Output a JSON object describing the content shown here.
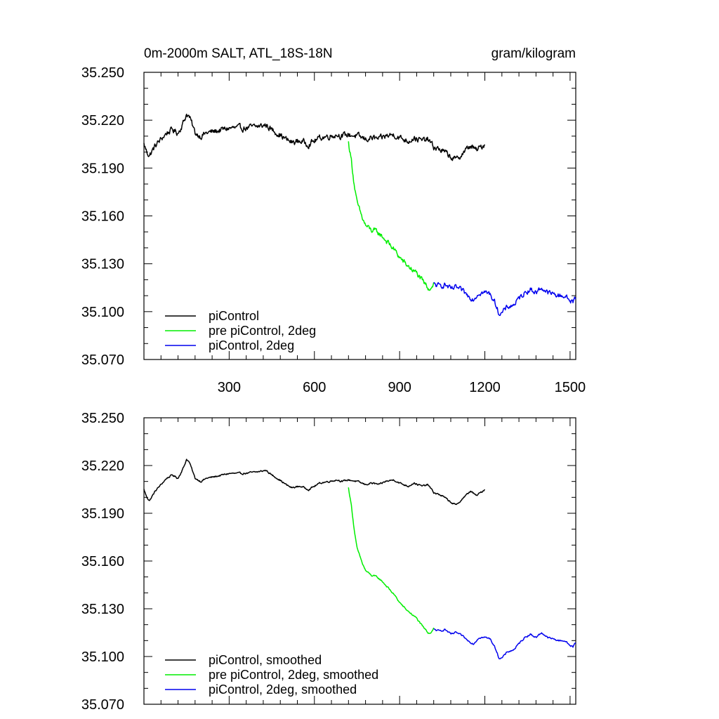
{
  "chart_data": [
    {
      "type": "line",
      "title_left": "0m-2000m SALT, ATL_18S-18N",
      "title_right": "gram/kilogram",
      "xlabel": "",
      "ylabel": "",
      "xlim": [
        0,
        1520
      ],
      "ylim": [
        35.07,
        35.25
      ],
      "xticks": [
        300,
        600,
        900,
        1200,
        1500
      ],
      "xtick_labels": [
        "300",
        "600",
        "900",
        "1200",
        "1500"
      ],
      "yticks": [
        35.07,
        35.1,
        35.13,
        35.16,
        35.19,
        35.22,
        35.25
      ],
      "ytick_labels": [
        "35.070",
        "35.100",
        "35.130",
        "35.160",
        "35.190",
        "35.220",
        "35.250"
      ],
      "legend_position": "bottom-left",
      "series": [
        {
          "name": "piControl",
          "color": "#000000",
          "noise": 0.0035,
          "x": [
            0,
            10,
            20,
            40,
            60,
            80,
            100,
            120,
            140,
            150,
            160,
            170,
            180,
            200,
            220,
            250,
            300,
            350,
            400,
            430,
            450,
            470,
            500,
            520,
            550,
            580,
            600,
            620,
            650,
            680,
            700,
            720,
            750,
            780,
            800,
            830,
            850,
            880,
            900,
            930,
            950,
            980,
            1000,
            1020,
            1050,
            1080,
            1100,
            1120,
            1150,
            1170,
            1200
          ],
          "y": [
            35.205,
            35.2,
            35.198,
            35.204,
            35.208,
            35.212,
            35.214,
            35.212,
            35.219,
            35.224,
            35.222,
            35.217,
            35.212,
            35.21,
            35.212,
            35.213,
            35.215,
            35.215,
            35.216,
            35.217,
            35.214,
            35.212,
            35.208,
            35.206,
            35.207,
            35.205,
            35.207,
            35.209,
            35.21,
            35.211,
            35.21,
            35.211,
            35.21,
            35.208,
            35.209,
            35.208,
            35.21,
            35.211,
            35.209,
            35.207,
            35.209,
            35.207,
            35.208,
            35.203,
            35.201,
            35.197,
            35.195,
            35.199,
            35.204,
            35.201,
            35.205
          ]
        },
        {
          "name": "pre piControl, 2deg",
          "color": "#00ee00",
          "noise": 0.0032,
          "x": [
            720,
            730,
            740,
            750,
            760,
            770,
            780,
            800,
            820,
            840,
            860,
            880,
            900,
            920,
            940,
            960,
            980,
            990,
            1000,
            1010,
            1020
          ],
          "y": [
            35.206,
            35.195,
            35.18,
            35.168,
            35.163,
            35.158,
            35.154,
            35.151,
            35.15,
            35.147,
            35.143,
            35.139,
            35.134,
            35.13,
            35.127,
            35.124,
            35.119,
            35.117,
            35.115,
            35.115,
            35.118
          ]
        },
        {
          "name": "piControl, 2deg",
          "color": "#0000ee",
          "noise": 0.003,
          "x": [
            1020,
            1040,
            1060,
            1080,
            1100,
            1120,
            1140,
            1160,
            1180,
            1200,
            1220,
            1240,
            1250,
            1260,
            1280,
            1300,
            1320,
            1340,
            1360,
            1380,
            1400,
            1420,
            1440,
            1460,
            1480,
            1500,
            1510,
            1520
          ],
          "y": [
            35.117,
            35.116,
            35.117,
            35.114,
            35.115,
            35.113,
            35.11,
            35.108,
            35.112,
            35.112,
            35.111,
            35.104,
            35.099,
            35.099,
            35.103,
            35.104,
            35.108,
            35.112,
            35.114,
            35.112,
            35.115,
            35.112,
            35.111,
            35.11,
            35.11,
            35.107,
            35.106,
            35.109
          ]
        }
      ]
    },
    {
      "type": "line",
      "xlabel": "",
      "ylabel": "",
      "xlim": [
        0,
        1520
      ],
      "ylim": [
        35.07,
        35.25
      ],
      "xticks": [
        300,
        600,
        900,
        1200,
        1500
      ],
      "xtick_labels": [],
      "yticks": [
        35.07,
        35.1,
        35.13,
        35.16,
        35.19,
        35.22,
        35.25
      ],
      "ytick_labels": [
        "35.070",
        "35.100",
        "35.130",
        "35.160",
        "35.190",
        "35.220",
        "35.250"
      ],
      "legend_position": "bottom-left",
      "series": [
        {
          "name": "piControl, smoothed",
          "color": "#000000",
          "noise": 0.001,
          "x": [
            0,
            10,
            20,
            40,
            60,
            80,
            100,
            120,
            140,
            150,
            160,
            170,
            180,
            200,
            220,
            250,
            300,
            350,
            400,
            430,
            450,
            470,
            500,
            520,
            550,
            580,
            600,
            620,
            650,
            680,
            700,
            720,
            750,
            780,
            800,
            830,
            850,
            880,
            900,
            930,
            950,
            980,
            1000,
            1020,
            1050,
            1080,
            1100,
            1120,
            1150,
            1170,
            1200
          ],
          "y": [
            35.205,
            35.2,
            35.198,
            35.204,
            35.208,
            35.212,
            35.214,
            35.212,
            35.219,
            35.224,
            35.222,
            35.217,
            35.212,
            35.21,
            35.212,
            35.213,
            35.215,
            35.215,
            35.216,
            35.217,
            35.214,
            35.212,
            35.208,
            35.206,
            35.207,
            35.205,
            35.207,
            35.209,
            35.21,
            35.211,
            35.21,
            35.211,
            35.21,
            35.208,
            35.209,
            35.208,
            35.21,
            35.211,
            35.209,
            35.207,
            35.209,
            35.207,
            35.208,
            35.203,
            35.201,
            35.197,
            35.195,
            35.199,
            35.204,
            35.201,
            35.205
          ]
        },
        {
          "name": "pre piControl, 2deg, smoothed",
          "color": "#00ee00",
          "noise": 0.001,
          "x": [
            720,
            730,
            740,
            750,
            760,
            770,
            780,
            800,
            820,
            840,
            860,
            880,
            900,
            920,
            940,
            960,
            980,
            990,
            1000,
            1010,
            1020
          ],
          "y": [
            35.206,
            35.195,
            35.18,
            35.168,
            35.163,
            35.158,
            35.154,
            35.151,
            35.15,
            35.147,
            35.143,
            35.139,
            35.134,
            35.13,
            35.127,
            35.124,
            35.119,
            35.117,
            35.115,
            35.115,
            35.118
          ]
        },
        {
          "name": "piControl, 2deg, smoothed",
          "color": "#0000ee",
          "noise": 0.001,
          "x": [
            1020,
            1040,
            1060,
            1080,
            1100,
            1120,
            1140,
            1160,
            1180,
            1200,
            1220,
            1240,
            1250,
            1260,
            1280,
            1300,
            1320,
            1340,
            1360,
            1380,
            1400,
            1420,
            1440,
            1460,
            1480,
            1500,
            1510,
            1520
          ],
          "y": [
            35.117,
            35.116,
            35.117,
            35.114,
            35.115,
            35.113,
            35.11,
            35.108,
            35.112,
            35.112,
            35.111,
            35.104,
            35.099,
            35.099,
            35.103,
            35.104,
            35.108,
            35.112,
            35.114,
            35.112,
            35.115,
            35.112,
            35.111,
            35.11,
            35.11,
            35.107,
            35.106,
            35.109
          ]
        }
      ]
    }
  ]
}
